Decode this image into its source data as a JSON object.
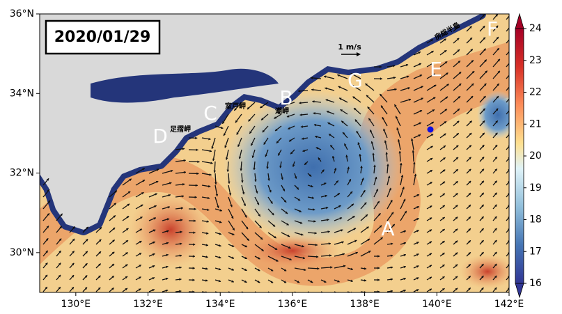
{
  "map": {
    "title": "2020/01/29",
    "xlim": [
      129,
      142
    ],
    "ylim": [
      29,
      36
    ],
    "lon_ticks": [
      {
        "value": 130,
        "label": "130°E"
      },
      {
        "value": 132,
        "label": "132°E"
      },
      {
        "value": 134,
        "label": "134°E"
      },
      {
        "value": 136,
        "label": "136°E"
      },
      {
        "value": 138,
        "label": "138°E"
      },
      {
        "value": 140,
        "label": "140°E"
      },
      {
        "value": 142,
        "label": "142°E"
      }
    ],
    "lat_ticks": [
      {
        "value": 30,
        "label": "30°N"
      },
      {
        "value": 32,
        "label": "32°N"
      },
      {
        "value": 34,
        "label": "34°N"
      },
      {
        "value": 36,
        "label": "36°N"
      }
    ],
    "colorbar": {
      "lim": [
        16,
        24
      ],
      "ticks": [
        16,
        17,
        18,
        19,
        20,
        21,
        22,
        23,
        24
      ]
    },
    "scale_label": "1 m/s",
    "letters": [
      "A",
      "B",
      "C",
      "D",
      "E",
      "F",
      "G"
    ],
    "place_names": [
      "室戸岬",
      "足摺岬",
      "潮岬",
      "房総半島"
    ]
  }
}
